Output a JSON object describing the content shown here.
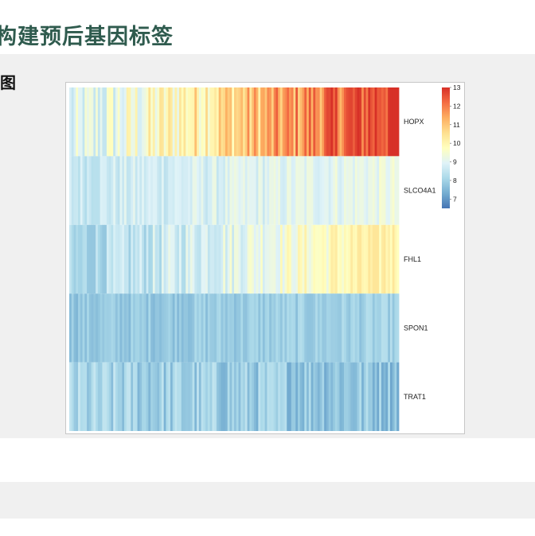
{
  "page": {
    "title": "构建预后基因标签",
    "section_label": "图"
  },
  "colors": {
    "title": "#2f5b4e",
    "panel_background": "#f0f0f0",
    "palette": [
      "#4575b4",
      "#74add1",
      "#abd9e9",
      "#e0f3f8",
      "#ffffbf",
      "#fee090",
      "#fdae61",
      "#f46d43",
      "#d73027"
    ]
  },
  "chart_data": {
    "type": "heatmap",
    "rows": [
      "HOPX",
      "SLCO4A1",
      "FHL1",
      "SPON1",
      "TRAT1"
    ],
    "samples_approx": 150,
    "sample_order": "sorted by increasing HOPX expression (left to right)",
    "row_value_ranges": {
      "HOPX": [
        8.5,
        13
      ],
      "SLCO4A1": [
        8,
        9.8
      ],
      "FHL1": [
        7.8,
        10.4
      ],
      "SPON1": [
        7.2,
        8.6
      ],
      "TRAT1": [
        6.6,
        9.2
      ]
    },
    "colorbar": {
      "min": 6.5,
      "max": 13,
      "ticks": [
        13,
        12,
        11,
        10,
        9,
        8,
        7
      ],
      "low_color": "#4575b4",
      "mid_color": "#ffffbf",
      "high_color": "#d73027"
    },
    "legend_position": "right"
  }
}
